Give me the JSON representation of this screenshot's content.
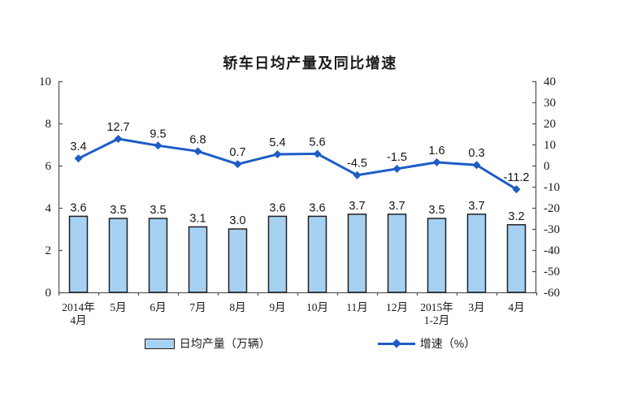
{
  "title": "轿车日均产量及同比增速",
  "legend": {
    "bar_label": "日均产量（万辆）",
    "line_label": "增速（%）"
  },
  "colors": {
    "bar_fill": "#A6D1F2",
    "bar_border": "#202020",
    "line": "#1E5CC6",
    "axis": "#595959",
    "tick_text": "#1a1a1a",
    "data_label_text": "#141414"
  },
  "chart_data": {
    "type": "combo",
    "title": "轿车日均产量及同比增速",
    "categories": [
      "2014年4月",
      "5月",
      "6月",
      "7月",
      "8月",
      "9月",
      "10月",
      "11月",
      "12月",
      "2015年1-2月",
      "3月",
      "4月"
    ],
    "categories_lines": [
      [
        "2014年",
        "4月"
      ],
      [
        "5月"
      ],
      [
        "6月"
      ],
      [
        "7月"
      ],
      [
        "8月"
      ],
      [
        "9月"
      ],
      [
        "10月"
      ],
      [
        "11月"
      ],
      [
        "12月"
      ],
      [
        "2015年",
        "1-2月"
      ],
      [
        "3月"
      ],
      [
        "4月"
      ]
    ],
    "series": [
      {
        "name": "日均产量（万辆）",
        "type": "bar",
        "axis": "left",
        "values": [
          3.6,
          3.5,
          3.5,
          3.1,
          3.0,
          3.6,
          3.6,
          3.7,
          3.7,
          3.5,
          3.7,
          3.2
        ]
      },
      {
        "name": "增速（%）",
        "type": "line",
        "axis": "right",
        "values": [
          3.4,
          12.7,
          9.5,
          6.8,
          0.7,
          5.4,
          5.6,
          -4.5,
          -1.5,
          1.6,
          0.3,
          -11.2
        ]
      }
    ],
    "left_axis": {
      "min": 0,
      "max": 10,
      "step": 2,
      "ticks": [
        0,
        2,
        4,
        6,
        8,
        10
      ]
    },
    "right_axis": {
      "min": -60,
      "max": 40,
      "step": 10,
      "ticks": [
        40,
        30,
        20,
        10,
        0,
        -10,
        -20,
        -30,
        -40,
        -50,
        -60
      ]
    },
    "grid": false,
    "legend_position": "bottom",
    "data_labels_decimals": 1
  }
}
